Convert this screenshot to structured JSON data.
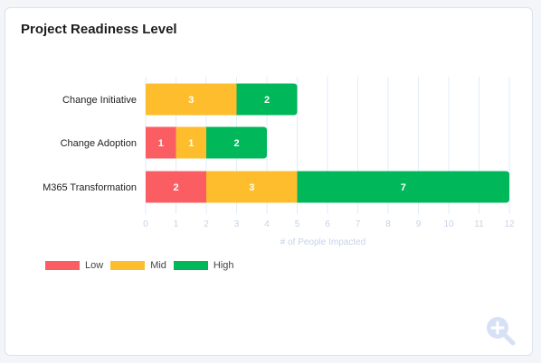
{
  "card": {
    "title": "Project Readiness Level"
  },
  "colors": {
    "low": "#fb5e62",
    "mid": "#fdbd2d",
    "high": "#00b75a",
    "grid": "#e3edf8",
    "tick": "#c5d3e8"
  },
  "icons": {
    "zoom": "zoom-in-icon"
  },
  "chart_data": {
    "type": "bar",
    "orientation": "horizontal",
    "stacked": true,
    "title": "Project Readiness Level",
    "xlabel": "# of People Impacted",
    "ylabel": "",
    "xlim": [
      0,
      12
    ],
    "xticks": [
      0,
      1,
      2,
      3,
      4,
      5,
      6,
      7,
      8,
      9,
      10,
      11,
      12
    ],
    "categories": [
      "Change Initiative",
      "Change Adoption",
      "M365 Transformation"
    ],
    "series": [
      {
        "name": "Low",
        "color": "#fb5e62",
        "values": [
          0,
          1,
          2
        ]
      },
      {
        "name": "Mid",
        "color": "#fdbd2d",
        "values": [
          3,
          1,
          3
        ]
      },
      {
        "name": "High",
        "color": "#00b75a",
        "values": [
          2,
          2,
          7
        ]
      }
    ],
    "grid": true,
    "legend_position": "bottom-left"
  }
}
